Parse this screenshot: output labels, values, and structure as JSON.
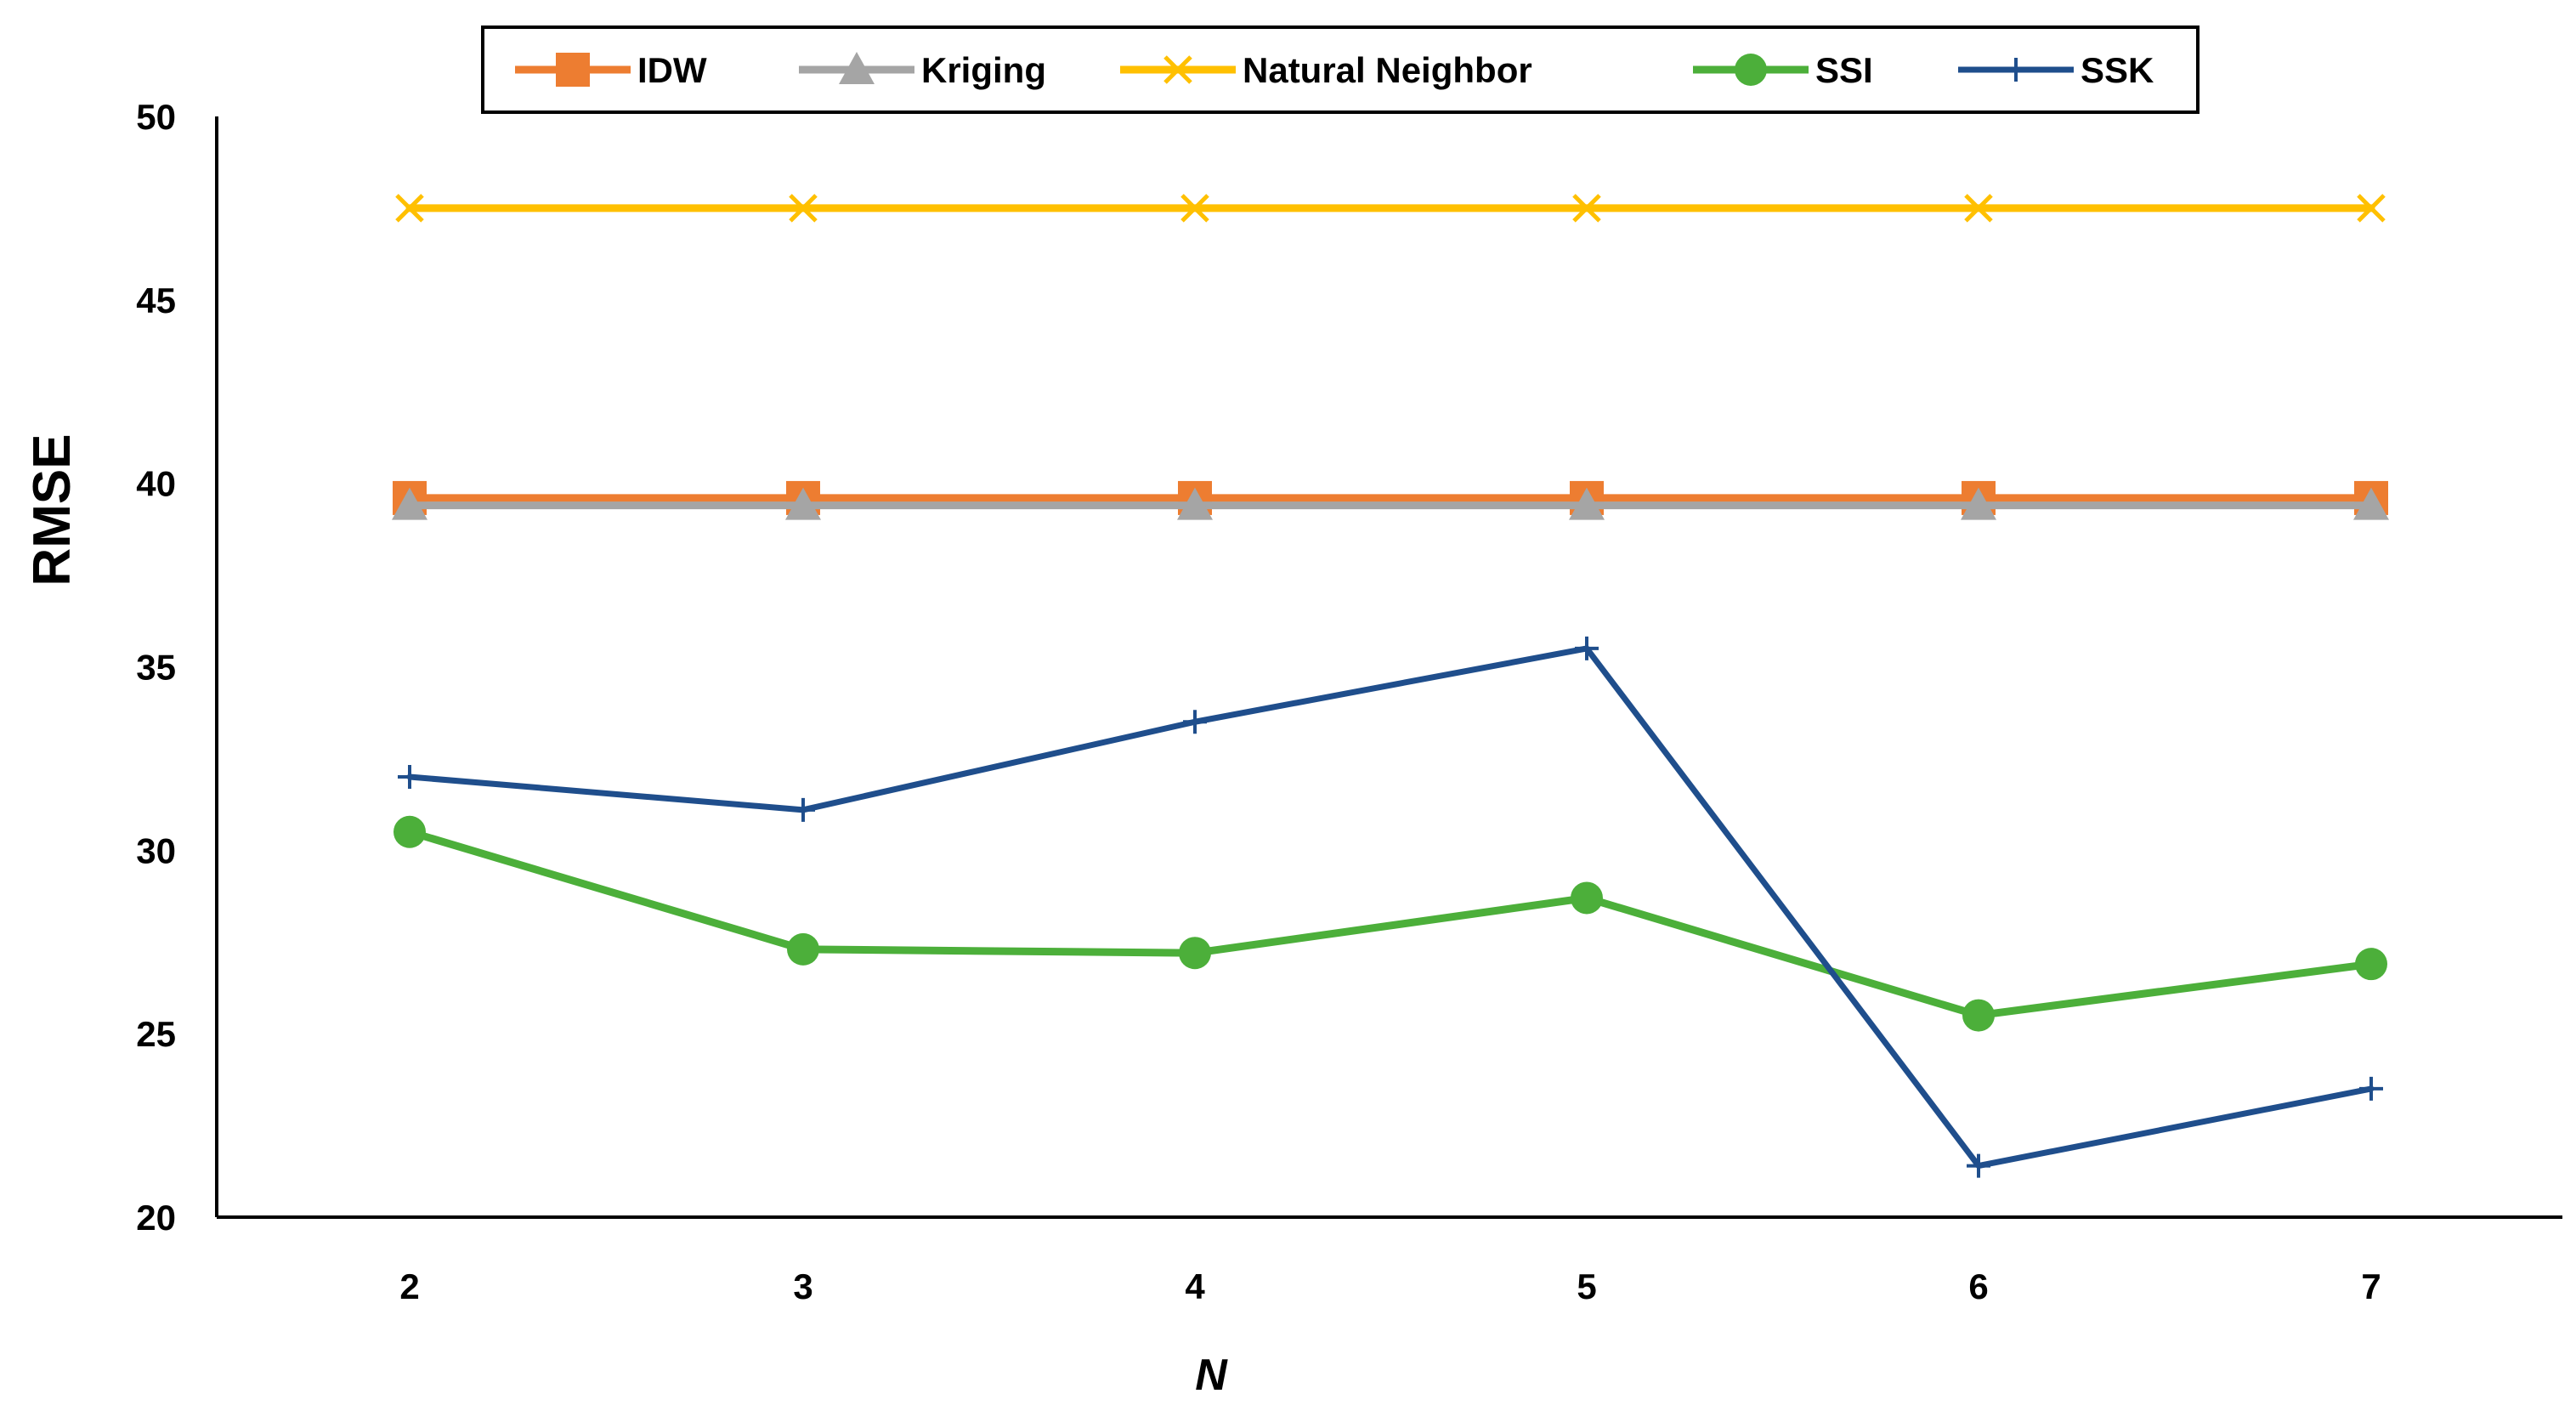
{
  "chart_data": {
    "type": "line",
    "title": "",
    "xlabel": "N",
    "ylabel": "RMSE",
    "x": [
      2,
      3,
      4,
      5,
      6,
      7
    ],
    "ylim": [
      20,
      50
    ],
    "yticks": [
      20,
      25,
      30,
      35,
      40,
      45,
      50
    ],
    "grid": false,
    "legend_position": "top",
    "series": [
      {
        "name": "IDW",
        "color": "#ED7D31",
        "marker": "square",
        "values": [
          39.6,
          39.6,
          39.6,
          39.6,
          39.6,
          39.6
        ]
      },
      {
        "name": "Kriging",
        "color": "#A5A5A5",
        "marker": "triangle",
        "values": [
          39.4,
          39.4,
          39.4,
          39.4,
          39.4,
          39.4
        ]
      },
      {
        "name": "Natural Neighbor",
        "color": "#FFC000",
        "marker": "x",
        "values": [
          47.5,
          47.5,
          47.5,
          47.5,
          47.5,
          47.5
        ]
      },
      {
        "name": "SSI",
        "color": "#4CAF3A",
        "marker": "circle",
        "values": [
          30.5,
          27.3,
          27.2,
          28.7,
          25.5,
          26.9
        ]
      },
      {
        "name": "SSK",
        "color": "#1F4E8C",
        "marker": "plus",
        "values": [
          32.0,
          31.1,
          33.5,
          35.5,
          21.4,
          23.5
        ]
      }
    ]
  }
}
